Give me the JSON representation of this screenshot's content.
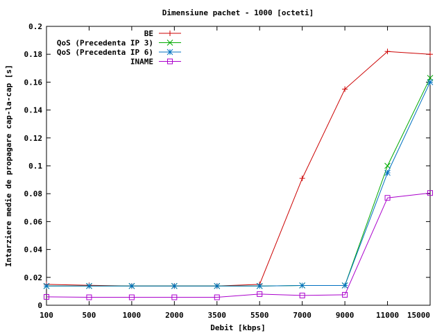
{
  "chart_data": {
    "type": "line",
    "title": "Dimensiune pachet - 1000 [octeti]",
    "xlabel": "Debit [kbps]",
    "ylabel": "Intarziere medie de propagare cap-la-cap [s]",
    "categories": [
      "100",
      "500",
      "1000",
      "2000",
      "3500",
      "5500",
      "7000",
      "9000",
      "11000",
      "15000"
    ],
    "y_ticks": [
      "0",
      "0.02",
      "0.04",
      "0.06",
      "0.08",
      "0.1",
      "0.12",
      "0.14",
      "0.16",
      "0.18",
      "0.2"
    ],
    "ylim": [
      0,
      0.2
    ],
    "grid": false,
    "legend_position": "top-left",
    "series": [
      {
        "name": "BE",
        "color": "#cc0000",
        "marker": "plus",
        "values": [
          0.015,
          0.0143,
          0.0138,
          0.0138,
          0.0138,
          0.015,
          0.091,
          0.155,
          0.182,
          0.18
        ]
      },
      {
        "name": "QoS (Precedenta IP 3)",
        "color": "#00aa00",
        "marker": "cross",
        "values": [
          0.0138,
          0.0138,
          0.0138,
          0.0138,
          0.0138,
          0.0138,
          0.0142,
          0.0142,
          0.1,
          0.163
        ]
      },
      {
        "name": "QoS (Precedenta IP 6)",
        "color": "#0070c0",
        "marker": "star",
        "values": [
          0.0138,
          0.0138,
          0.0138,
          0.0138,
          0.0138,
          0.0138,
          0.0142,
          0.0142,
          0.095,
          0.16
        ]
      },
      {
        "name": "INAME",
        "color": "#aa00cc",
        "marker": "square",
        "values": [
          0.006,
          0.0057,
          0.0057,
          0.0057,
          0.0057,
          0.008,
          0.007,
          0.0075,
          0.077,
          0.0805
        ]
      }
    ]
  }
}
